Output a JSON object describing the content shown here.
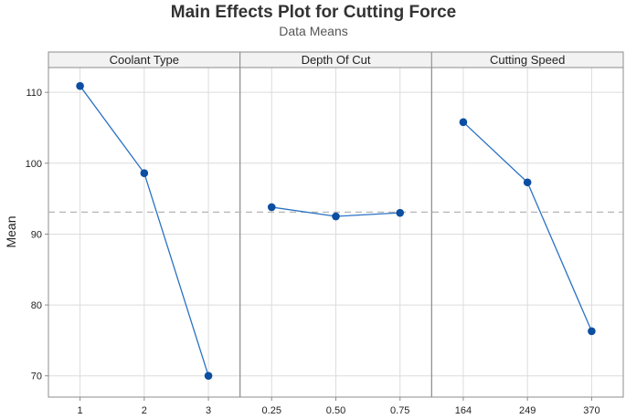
{
  "chart_data": {
    "type": "line",
    "title": "Main Effects Plot for Cutting Force",
    "subtitle": "Data Means",
    "ylabel": "Mean",
    "ylim": [
      67,
      113.5
    ],
    "yticks": [
      70,
      80,
      90,
      100,
      110
    ],
    "reference_line": 93.1,
    "grid": true,
    "color": "#2a72c4",
    "marker_color": "#0b4ea2",
    "panels": [
      {
        "label": "Coolant Type",
        "categories": [
          "1",
          "2",
          "3"
        ],
        "values": [
          110.9,
          98.6,
          70.0
        ]
      },
      {
        "label": "Depth Of Cut",
        "categories": [
          "0.25",
          "0.50",
          "0.75"
        ],
        "values": [
          93.8,
          92.5,
          93.0
        ]
      },
      {
        "label": "Cutting Speed",
        "categories": [
          "164",
          "249",
          "370"
        ],
        "values": [
          105.8,
          97.3,
          76.3
        ]
      }
    ]
  }
}
